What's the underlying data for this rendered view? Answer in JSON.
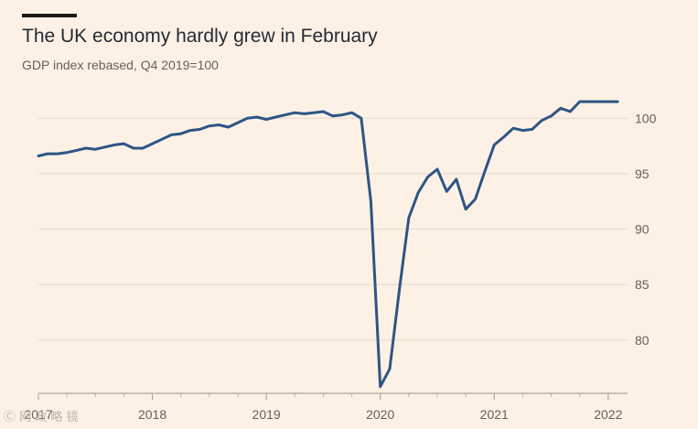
{
  "header": {
    "title": "The UK economy hardly grew in February",
    "subtitle": "GDP index rebased, Q4 2019=100"
  },
  "watermark": "Ⓒ 网 政 略 镜",
  "colors": {
    "line": "#2e5585",
    "grid": "#e6dacd",
    "axis_text": "#66605c",
    "background": "#fdf1e5"
  },
  "chart_data": {
    "type": "line",
    "title": "The UK economy hardly grew in February",
    "subtitle": "GDP index rebased, Q4 2019=100",
    "xlabel": "",
    "ylabel": "",
    "x_range": [
      2017.0,
      2022.17
    ],
    "ylim": [
      75.2,
      102
    ],
    "y_ticks": [
      80,
      85,
      90,
      95,
      100
    ],
    "x_ticks": [
      {
        "value": 2017,
        "label": "2017"
      },
      {
        "value": 2018,
        "label": "2018"
      },
      {
        "value": 2019,
        "label": "2019"
      },
      {
        "value": 2020,
        "label": "2020"
      },
      {
        "value": 2021,
        "label": "2021"
      },
      {
        "value": 2022,
        "label": "2022"
      }
    ],
    "grid": true,
    "y_axis_side": "right",
    "series": [
      {
        "name": "GDP index",
        "x": [
          2017.0,
          2017.083,
          2017.167,
          2017.25,
          2017.333,
          2017.417,
          2017.5,
          2017.583,
          2017.667,
          2017.75,
          2017.833,
          2017.917,
          2018.0,
          2018.083,
          2018.167,
          2018.25,
          2018.333,
          2018.417,
          2018.5,
          2018.583,
          2018.667,
          2018.75,
          2018.833,
          2018.917,
          2019.0,
          2019.083,
          2019.167,
          2019.25,
          2019.333,
          2019.417,
          2019.5,
          2019.583,
          2019.667,
          2019.75,
          2019.833,
          2019.917,
          2020.0,
          2020.083,
          2020.167,
          2020.25,
          2020.333,
          2020.417,
          2020.5,
          2020.583,
          2020.667,
          2020.75,
          2020.833,
          2020.917,
          2021.0,
          2021.083,
          2021.167,
          2021.25,
          2021.333,
          2021.417,
          2021.5,
          2021.583,
          2021.667,
          2021.75,
          2021.833,
          2021.917,
          2022.0,
          2022.083
        ],
        "values": [
          96.6,
          96.8,
          96.8,
          96.9,
          97.1,
          97.3,
          97.2,
          97.4,
          97.6,
          97.7,
          97.3,
          97.3,
          97.7,
          98.1,
          98.5,
          98.6,
          98.9,
          99.0,
          99.3,
          99.4,
          99.2,
          99.6,
          100.0,
          100.1,
          99.9,
          100.1,
          100.3,
          100.5,
          100.4,
          100.5,
          100.6,
          100.2,
          100.3,
          100.5,
          100.0,
          92.5,
          75.8,
          77.4,
          84.5,
          91.0,
          93.3,
          94.7,
          95.4,
          93.4,
          94.5,
          91.8,
          92.7,
          95.2,
          97.6,
          98.3,
          99.1,
          98.9,
          99.0,
          99.8,
          100.2,
          100.9,
          100.6,
          101.5,
          101.5,
          101.5,
          101.5,
          101.5
        ]
      }
    ]
  }
}
